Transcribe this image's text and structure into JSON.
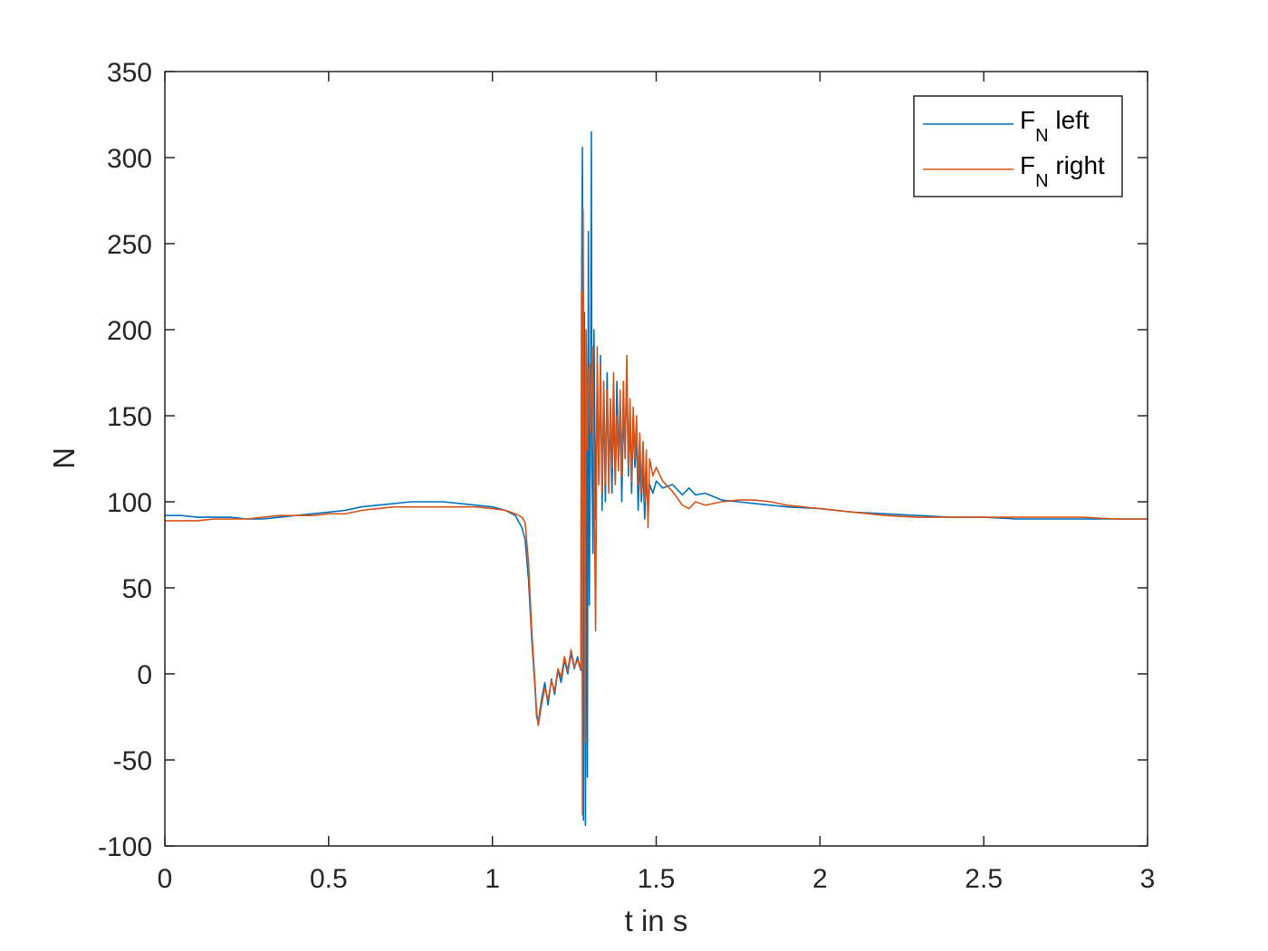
{
  "chart_data": {
    "type": "line",
    "title": "",
    "xlabel": "t in s",
    "ylabel": "N",
    "xlim": [
      0,
      3
    ],
    "ylim": [
      -100,
      350
    ],
    "xticks": [
      0,
      0.5,
      1,
      1.5,
      2,
      2.5,
      3
    ],
    "xtick_labels": [
      "0",
      "0.5",
      "1",
      "1.5",
      "2",
      "2.5",
      "3"
    ],
    "yticks": [
      -100,
      -50,
      0,
      50,
      100,
      150,
      200,
      250,
      300,
      350
    ],
    "ytick_labels": [
      "-100",
      "-50",
      "0",
      "50",
      "100",
      "150",
      "200",
      "250",
      "300",
      "350"
    ],
    "grid": false,
    "legend_position": "top-right",
    "series": [
      {
        "name": "F_N left",
        "legend_main": "F",
        "legend_sub": "N",
        "legend_rest": " left",
        "color": "#0072BD",
        "points": [
          [
            0,
            92
          ],
          [
            0.05,
            92
          ],
          [
            0.1,
            91
          ],
          [
            0.15,
            91
          ],
          [
            0.2,
            91
          ],
          [
            0.25,
            90
          ],
          [
            0.3,
            90
          ],
          [
            0.35,
            91
          ],
          [
            0.4,
            92
          ],
          [
            0.45,
            93
          ],
          [
            0.5,
            94
          ],
          [
            0.55,
            95
          ],
          [
            0.6,
            97
          ],
          [
            0.65,
            98
          ],
          [
            0.7,
            99
          ],
          [
            0.75,
            100
          ],
          [
            0.8,
            100
          ],
          [
            0.85,
            100
          ],
          [
            0.9,
            99
          ],
          [
            0.95,
            98
          ],
          [
            1.0,
            97
          ],
          [
            1.04,
            95
          ],
          [
            1.07,
            92
          ],
          [
            1.09,
            85
          ],
          [
            1.1,
            78
          ],
          [
            1.11,
            55
          ],
          [
            1.12,
            20
          ],
          [
            1.13,
            -8
          ],
          [
            1.135,
            -25
          ],
          [
            1.14,
            -28
          ],
          [
            1.15,
            -15
          ],
          [
            1.16,
            -5
          ],
          [
            1.17,
            -18
          ],
          [
            1.18,
            -3
          ],
          [
            1.19,
            -12
          ],
          [
            1.2,
            2
          ],
          [
            1.21,
            -5
          ],
          [
            1.22,
            8
          ],
          [
            1.23,
            0
          ],
          [
            1.24,
            12
          ],
          [
            1.25,
            3
          ],
          [
            1.26,
            10
          ],
          [
            1.265,
            5
          ],
          [
            1.27,
            2
          ],
          [
            1.273,
            250
          ],
          [
            1.275,
            306
          ],
          [
            1.278,
            -85
          ],
          [
            1.281,
            210
          ],
          [
            1.284,
            -88
          ],
          [
            1.287,
            150
          ],
          [
            1.29,
            -60
          ],
          [
            1.293,
            257
          ],
          [
            1.296,
            40
          ],
          [
            1.3,
            180
          ],
          [
            1.302,
            315
          ],
          [
            1.304,
            120
          ],
          [
            1.307,
            70
          ],
          [
            1.31,
            200
          ],
          [
            1.315,
            90
          ],
          [
            1.32,
            170
          ],
          [
            1.325,
            110
          ],
          [
            1.33,
            185
          ],
          [
            1.335,
            95
          ],
          [
            1.34,
            165
          ],
          [
            1.345,
            100
          ],
          [
            1.35,
            175
          ],
          [
            1.355,
            115
          ],
          [
            1.36,
            150
          ],
          [
            1.365,
            105
          ],
          [
            1.37,
            160
          ],
          [
            1.375,
            110
          ],
          [
            1.38,
            170
          ],
          [
            1.385,
            120
          ],
          [
            1.39,
            155
          ],
          [
            1.395,
            100
          ],
          [
            1.4,
            150
          ],
          [
            1.405,
            130
          ],
          [
            1.41,
            175
          ],
          [
            1.415,
            115
          ],
          [
            1.42,
            150
          ],
          [
            1.425,
            105
          ],
          [
            1.43,
            150
          ],
          [
            1.435,
            120
          ],
          [
            1.44,
            140
          ],
          [
            1.445,
            95
          ],
          [
            1.45,
            125
          ],
          [
            1.455,
            100
          ],
          [
            1.46,
            120
          ],
          [
            1.465,
            90
          ],
          [
            1.47,
            115
          ],
          [
            1.475,
            95
          ],
          [
            1.48,
            110
          ],
          [
            1.49,
            105
          ],
          [
            1.5,
            112
          ],
          [
            1.52,
            108
          ],
          [
            1.55,
            110
          ],
          [
            1.58,
            104
          ],
          [
            1.6,
            108
          ],
          [
            1.62,
            104
          ],
          [
            1.65,
            105
          ],
          [
            1.7,
            101
          ],
          [
            1.75,
            100
          ],
          [
            1.8,
            99
          ],
          [
            1.85,
            98
          ],
          [
            1.9,
            97
          ],
          [
            2.0,
            96
          ],
          [
            2.1,
            94
          ],
          [
            2.2,
            93
          ],
          [
            2.3,
            92
          ],
          [
            2.4,
            91
          ],
          [
            2.5,
            91
          ],
          [
            2.6,
            90
          ],
          [
            2.7,
            90
          ],
          [
            2.8,
            90
          ],
          [
            2.9,
            90
          ],
          [
            3.0,
            90
          ]
        ]
      },
      {
        "name": "F_N right",
        "legend_main": "F",
        "legend_sub": "N",
        "legend_rest": " right",
        "color": "#D95319",
        "points": [
          [
            0,
            89
          ],
          [
            0.05,
            89
          ],
          [
            0.1,
            89
          ],
          [
            0.15,
            90
          ],
          [
            0.2,
            90
          ],
          [
            0.25,
            90
          ],
          [
            0.3,
            91
          ],
          [
            0.35,
            92
          ],
          [
            0.4,
            92
          ],
          [
            0.45,
            92
          ],
          [
            0.5,
            93
          ],
          [
            0.55,
            93
          ],
          [
            0.6,
            95
          ],
          [
            0.65,
            96
          ],
          [
            0.7,
            97
          ],
          [
            0.75,
            97
          ],
          [
            0.8,
            97
          ],
          [
            0.85,
            97
          ],
          [
            0.9,
            97
          ],
          [
            0.95,
            97
          ],
          [
            1.0,
            96
          ],
          [
            1.04,
            95
          ],
          [
            1.07,
            93
          ],
          [
            1.09,
            91
          ],
          [
            1.1,
            88
          ],
          [
            1.11,
            65
          ],
          [
            1.12,
            25
          ],
          [
            1.13,
            -5
          ],
          [
            1.135,
            -22
          ],
          [
            1.14,
            -30
          ],
          [
            1.15,
            -18
          ],
          [
            1.16,
            -8
          ],
          [
            1.17,
            -15
          ],
          [
            1.18,
            -4
          ],
          [
            1.19,
            -10
          ],
          [
            1.2,
            3
          ],
          [
            1.21,
            -2
          ],
          [
            1.22,
            10
          ],
          [
            1.23,
            2
          ],
          [
            1.24,
            14
          ],
          [
            1.25,
            4
          ],
          [
            1.26,
            8
          ],
          [
            1.265,
            6
          ],
          [
            1.27,
            3
          ],
          [
            1.272,
            222
          ],
          [
            1.275,
            -82
          ],
          [
            1.277,
            270
          ],
          [
            1.28,
            120
          ],
          [
            1.283,
            -40
          ],
          [
            1.286,
            200
          ],
          [
            1.29,
            130
          ],
          [
            1.293,
            175
          ],
          [
            1.297,
            180
          ],
          [
            1.3,
            140
          ],
          [
            1.305,
            190
          ],
          [
            1.31,
            120
          ],
          [
            1.315,
            25
          ],
          [
            1.32,
            190
          ],
          [
            1.325,
            110
          ],
          [
            1.33,
            180
          ],
          [
            1.335,
            105
          ],
          [
            1.34,
            170
          ],
          [
            1.345,
            110
          ],
          [
            1.35,
            165
          ],
          [
            1.355,
            105
          ],
          [
            1.36,
            160
          ],
          [
            1.365,
            120
          ],
          [
            1.37,
            175
          ],
          [
            1.375,
            110
          ],
          [
            1.38,
            150
          ],
          [
            1.385,
            118
          ],
          [
            1.39,
            165
          ],
          [
            1.395,
            115
          ],
          [
            1.4,
            170
          ],
          [
            1.405,
            125
          ],
          [
            1.41,
            185
          ],
          [
            1.415,
            120
          ],
          [
            1.42,
            160
          ],
          [
            1.425,
            112
          ],
          [
            1.43,
            155
          ],
          [
            1.435,
            125
          ],
          [
            1.44,
            150
          ],
          [
            1.445,
            110
          ],
          [
            1.45,
            140
          ],
          [
            1.455,
            105
          ],
          [
            1.46,
            135
          ],
          [
            1.465,
            100
          ],
          [
            1.47,
            130
          ],
          [
            1.475,
            85
          ],
          [
            1.48,
            125
          ],
          [
            1.49,
            115
          ],
          [
            1.5,
            120
          ],
          [
            1.52,
            112
          ],
          [
            1.55,
            106
          ],
          [
            1.58,
            98
          ],
          [
            1.6,
            96
          ],
          [
            1.62,
            100
          ],
          [
            1.65,
            98
          ],
          [
            1.7,
            100
          ],
          [
            1.75,
            101
          ],
          [
            1.8,
            101
          ],
          [
            1.85,
            100
          ],
          [
            1.9,
            98
          ],
          [
            2.0,
            96
          ],
          [
            2.1,
            94
          ],
          [
            2.2,
            92
          ],
          [
            2.3,
            91
          ],
          [
            2.4,
            91
          ],
          [
            2.5,
            91
          ],
          [
            2.6,
            91
          ],
          [
            2.7,
            91
          ],
          [
            2.8,
            91
          ],
          [
            2.9,
            90
          ],
          [
            3.0,
            90
          ]
        ]
      }
    ]
  }
}
